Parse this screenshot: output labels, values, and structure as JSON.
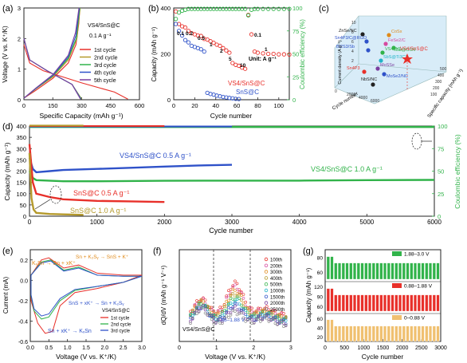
{
  "panel_labels": {
    "a": "(a)",
    "b": "(b)",
    "c": "(c)",
    "d": "(d)",
    "e": "(e)",
    "f": "(f)",
    "g": "(g)"
  },
  "colors": {
    "red": "#e8302a",
    "blue": "#2f52c9",
    "green": "#31b34a",
    "olive": "#b59a2c",
    "purple": "#7b3fa0",
    "orange": "#e08a1a",
    "black": "#222222",
    "pink": "#d64aa0",
    "cyan": "#22b4c8"
  },
  "panel_a": {
    "legend_title": "VS4/SnS@C",
    "current": "0.1 A g⁻¹",
    "legend": [
      "1st cycle",
      "2nd cycle",
      "3rd cycle",
      "4th cycle",
      "5th cycle"
    ]
  },
  "panel_b": {
    "rate_labels": [
      "0.1",
      "0.2",
      "0.5",
      "1",
      "2",
      "5",
      "10",
      "0.1",
      "1"
    ],
    "unit_label": "Unit: A g⁻¹",
    "series_labels": [
      "VS4/SnS@C",
      "SnS@C"
    ]
  },
  "panel_c": {
    "axis_left": "Cycle number",
    "axis_right": "Specific capacity (mAh g⁻¹)",
    "axis_vertical": "Current density (A g⁻¹)",
    "points": [
      "ZnSe/NC",
      "CoSx",
      "Sn4P3/C@RGO",
      "FeSe2/C",
      "Bi2S3/Sb",
      "VS4@C",
      "Sb@CSN",
      "SbS@Ti3C2",
      "MoSSe",
      "MoSe2/NC",
      "Sn4P3",
      "NbS/NC",
      "VS4/SnS@C"
    ],
    "ticks_right": [
      "100",
      "200",
      "300",
      "400",
      "500"
    ],
    "ticks_left": [
      "0",
      "2000",
      "4000",
      "6000"
    ],
    "ticks_vert": [
      "2",
      "4",
      "6",
      "8",
      "10"
    ]
  },
  "panel_d": {
    "xlabel": "Cycle number",
    "ylabel": "Capacity (mAh g⁻¹)",
    "y2label": "Coulombic efficiency (%)",
    "xticks": [
      "0",
      "1000",
      "2000",
      "3000",
      "4000",
      "5000",
      "6000"
    ],
    "yticks": [
      "0",
      "50",
      "100",
      "150",
      "200",
      "250",
      "300",
      "350",
      "400"
    ],
    "y2ticks": [
      "0",
      "25",
      "50",
      "75",
      "100"
    ],
    "labels": {
      "vs4_05": "VS4/SnS@C 0.5 A g⁻¹",
      "vs4_10": "VS4/SnS@C 1.0 A g⁻¹",
      "sns_05": "SnS@C 0.5 A g⁻¹",
      "sns_10": "SnS@C 1.0 A g⁻¹"
    }
  },
  "panel_e": {
    "xlabel": "Voltage (V vs. K⁺/K)",
    "ylabel": "Current (mA)",
    "xticks": [
      "0.0",
      "0.5",
      "1.0",
      "1.5",
      "2.0",
      "2.5",
      "3.0"
    ],
    "yticks": [
      "-0.6",
      "-0.4",
      "-0.2",
      "0.0",
      "0.2"
    ],
    "annotations": [
      "KₓSn → Sn + xK⁺",
      "Sn + K₂Sᵧ → SnS + K⁺",
      "SnS + xK⁺ → Sn + K₂Sᵧ",
      "Sn + xK⁺ → KₓSn"
    ],
    "legend_title": "VS4/SnS@C",
    "legend": [
      "1st cycle",
      "2nd cycle",
      "3rd cycle"
    ]
  },
  "panel_f": {
    "xlabel": "Voltage (V vs. K⁺/K)",
    "ylabel": "dQ/dV (mAh g⁻¹ V⁻¹)",
    "xticks": [
      "0",
      "1",
      "2",
      "3"
    ],
    "legend": [
      "100th",
      "200th",
      "300th",
      "400th",
      "500th",
      "1000th",
      "1500th",
      "2000th",
      "2500th"
    ],
    "window_label": "0.88–1.88 V",
    "sample_label": "VS4/SnS@C"
  },
  "panel_g": {
    "xlabel": "Cycle number",
    "ylabel": "Capacity (mAh g⁻¹)",
    "xticks": [
      "0",
      "500",
      "1000",
      "1500",
      "2000",
      "2500",
      "3000"
    ],
    "yticks": [
      "0",
      "20",
      "40",
      "60",
      "80",
      "100",
      "120",
      "140"
    ],
    "legend": [
      "1.88–3.0 V",
      "0.88–1.88 V",
      "0–0.88 V"
    ]
  },
  "chart_data": [
    {
      "type": "line",
      "title": "",
      "xlabel": "Specific Capacity (mAh g⁻¹)",
      "ylabel": "Voltage (V vs. K⁺/K)",
      "xlim": [
        0,
        600
      ],
      "ylim": [
        0,
        3
      ],
      "xticks": [
        0,
        150,
        300,
        450,
        600
      ],
      "yticks": [
        0,
        1,
        2,
        3
      ],
      "series": [
        {
          "name": "1st cycle",
          "color": "#e8302a",
          "charge": [
            [
              0,
              0.05
            ],
            [
              60,
              0.3
            ],
            [
              150,
              0.7
            ],
            [
              230,
              1.2
            ],
            [
              270,
              1.8
            ],
            [
              285,
              2.5
            ],
            [
              290,
              3.0
            ]
          ],
          "discharge": [
            [
              0,
              1.8
            ],
            [
              30,
              1.2
            ],
            [
              100,
              0.95
            ],
            [
              300,
              0.55
            ],
            [
              470,
              0.25
            ],
            [
              540,
              0.02
            ]
          ]
        },
        {
          "name": "2nd cycle",
          "color": "#b59a2c",
          "charge": [
            [
              0,
              0.05
            ],
            [
              60,
              0.35
            ],
            [
              150,
              0.75
            ],
            [
              230,
              1.3
            ],
            [
              275,
              2.0
            ],
            [
              292,
              3.0
            ]
          ],
          "discharge": [
            [
              0,
              2.0
            ],
            [
              30,
              1.3
            ],
            [
              120,
              0.95
            ],
            [
              250,
              0.5
            ],
            [
              300,
              0.02
            ]
          ]
        },
        {
          "name": "3rd cycle",
          "color": "#31b34a",
          "charge": [
            [
              0,
              0.05
            ],
            [
              60,
              0.35
            ],
            [
              150,
              0.78
            ],
            [
              230,
              1.35
            ],
            [
              272,
              2.0
            ],
            [
              290,
              3.0
            ]
          ],
          "discharge": [
            [
              0,
              2.0
            ],
            [
              30,
              1.3
            ],
            [
              120,
              0.95
            ],
            [
              250,
              0.5
            ],
            [
              298,
              0.02
            ]
          ]
        },
        {
          "name": "4th cycle",
          "color": "#2f52c9",
          "charge": [
            [
              0,
              0.05
            ],
            [
              60,
              0.36
            ],
            [
              150,
              0.8
            ],
            [
              230,
              1.4
            ],
            [
              270,
              2.1
            ],
            [
              288,
              3.0
            ]
          ],
          "discharge": [
            [
              0,
              2.0
            ],
            [
              30,
              1.3
            ],
            [
              120,
              0.95
            ],
            [
              250,
              0.5
            ],
            [
              296,
              0.02
            ]
          ]
        },
        {
          "name": "5th cycle",
          "color": "#7b3fa0",
          "charge": [
            [
              0,
              0.05
            ],
            [
              60,
              0.37
            ],
            [
              150,
              0.82
            ],
            [
              230,
              1.45
            ],
            [
              268,
              2.2
            ],
            [
              286,
              3.0
            ]
          ],
          "discharge": [
            [
              0,
              2.0
            ],
            [
              30,
              1.3
            ],
            [
              120,
              0.95
            ],
            [
              250,
              0.5
            ],
            [
              294,
              0.02
            ]
          ]
        }
      ]
    },
    {
      "type": "scatter",
      "title": "",
      "xlabel": "Cycle number",
      "ylabel": "Capacity (mAh g⁻¹)",
      "y2label": "Coulombic efficiency (%)",
      "xlim": [
        0,
        110
      ],
      "ylim": [
        0,
        400
      ],
      "y2lim": [
        0,
        100
      ],
      "xticks": [
        0,
        20,
        40,
        60,
        80,
        100
      ],
      "yticks": [
        0,
        200,
        400
      ],
      "y2ticks": [
        0,
        25,
        50,
        75,
        100
      ],
      "series": [
        {
          "name": "VS4/SnS@C",
          "color": "#e8302a",
          "x": [
            2,
            5,
            8,
            11,
            14,
            17,
            20,
            23,
            26,
            29,
            32,
            35,
            38,
            41,
            44,
            47,
            50,
            53,
            56,
            59,
            62,
            65,
            68,
            71,
            74,
            77,
            80,
            85,
            90,
            95,
            100,
            105,
            110
          ],
          "y": [
            385,
            330,
            320,
            315,
            300,
            290,
            285,
            280,
            278,
            265,
            262,
            255,
            248,
            240,
            235,
            225,
            215,
            205,
            160,
            152,
            148,
            140,
            135,
            370,
            285,
            210,
            205,
            202,
            200,
            200,
            198,
            198,
            197
          ]
        },
        {
          "name": "SnS@C",
          "color": "#2f52c9",
          "x": [
            2,
            5,
            8,
            11,
            14,
            17,
            20,
            23,
            26,
            29,
            32,
            35,
            38,
            41,
            44,
            47,
            50,
            53,
            56,
            59,
            62
          ],
          "y": [
            330,
            300,
            280,
            260,
            250,
            235,
            230,
            225,
            220,
            210,
            30,
            25,
            22,
            18,
            15,
            12,
            10,
            8,
            6,
            4,
            3
          ]
        },
        {
          "name": "CE VS4/SnS@C",
          "color": "#31b34a",
          "axis": "right",
          "x": [
            2,
            5,
            8,
            11,
            14,
            17,
            20,
            23,
            26,
            29,
            32,
            35,
            38,
            41,
            44,
            47,
            50,
            53,
            56,
            59,
            62,
            65,
            68,
            71,
            74,
            77,
            80,
            85,
            90,
            95,
            100,
            105,
            110
          ],
          "y": [
            88,
            95,
            97,
            98,
            99,
            99,
            99,
            99,
            99,
            99,
            99,
            99,
            99,
            99,
            99,
            99,
            99,
            99,
            99,
            99,
            99,
            99,
            99,
            92,
            98,
            99,
            99,
            99,
            99,
            99,
            99,
            99,
            99
          ]
        }
      ]
    },
    {
      "type": "scatter",
      "title": "",
      "xlabel": "Cycle number",
      "ylabel": "Capacity (mAh g⁻¹)",
      "y2label": "Coulombic efficiency (%)",
      "xlim": [
        0,
        6000
      ],
      "ylim": [
        0,
        400
      ],
      "y2lim": [
        0,
        100
      ],
      "series": [
        {
          "name": "VS4/SnS@C 0.5 A g⁻¹",
          "color": "#2f52c9",
          "x": [
            0,
            50,
            100,
            300,
            500,
            1000,
            1500,
            2000,
            2500,
            3000
          ],
          "y": [
            260,
            210,
            195,
            200,
            205,
            210,
            215,
            220,
            225,
            228
          ]
        },
        {
          "name": "VS4/SnS@C 1.0 A g⁻¹",
          "color": "#31b34a",
          "x": [
            0,
            50,
            100,
            500,
            1000,
            2000,
            3000,
            4000,
            5000,
            6000
          ],
          "y": [
            200,
            170,
            160,
            155,
            155,
            157,
            158,
            158,
            160,
            161
          ]
        },
        {
          "name": "SnS@C 0.5 A g⁻¹",
          "color": "#e8302a",
          "x": [
            0,
            50,
            100,
            300,
            500,
            1000,
            1500,
            2000
          ],
          "y": [
            320,
            150,
            100,
            85,
            75,
            68,
            66,
            63
          ]
        },
        {
          "name": "SnS@C 1.0 A g⁻¹",
          "color": "#b59a2c",
          "x": [
            0,
            30,
            60,
            100,
            300,
            500,
            800
          ],
          "y": [
            280,
            80,
            30,
            15,
            10,
            8,
            6
          ]
        }
      ]
    },
    {
      "type": "line",
      "title": "",
      "xlabel": "Voltage (V vs. K⁺/K)",
      "ylabel": "Current (mA)",
      "xlim": [
        0,
        3
      ],
      "ylim": [
        -0.6,
        0.3
      ],
      "series": [
        {
          "name": "1st cycle",
          "color": "#e8302a"
        },
        {
          "name": "2nd cycle",
          "color": "#31b34a"
        },
        {
          "name": "3rd cycle",
          "color": "#2f52c9"
        }
      ]
    },
    {
      "type": "line",
      "title": "",
      "xlabel": "Voltage (V vs. K⁺/K)",
      "ylabel": "dQ/dV (mAh g⁻¹ V⁻¹)",
      "xlim": [
        0,
        3
      ],
      "series": [
        {
          "name": "100th",
          "color": "#e8302a"
        },
        {
          "name": "200th",
          "color": "#d64aa0"
        },
        {
          "name": "300th",
          "color": "#e08a1a"
        },
        {
          "name": "400th",
          "color": "#b59a2c"
        },
        {
          "name": "500th",
          "color": "#31b34a"
        },
        {
          "name": "1000th",
          "color": "#22b4c8"
        },
        {
          "name": "1500th",
          "color": "#2f52c9"
        },
        {
          "name": "2000th",
          "color": "#7b3fa0"
        },
        {
          "name": "2500th",
          "color": "#888888"
        }
      ]
    },
    {
      "type": "bar",
      "title": "",
      "xlabel": "Cycle number",
      "ylabel": "Capacity (mAh g⁻¹)",
      "xlim": [
        0,
        3000
      ],
      "series": [
        {
          "name": "1.88–3.0 V",
          "color": "#31b34a",
          "value": 62
        },
        {
          "name": "0.88–1.88 V",
          "color": "#e8302a",
          "value": 95
        },
        {
          "name": "0–0.88 V",
          "color": "#f0c070",
          "value": 35
        }
      ]
    }
  ]
}
